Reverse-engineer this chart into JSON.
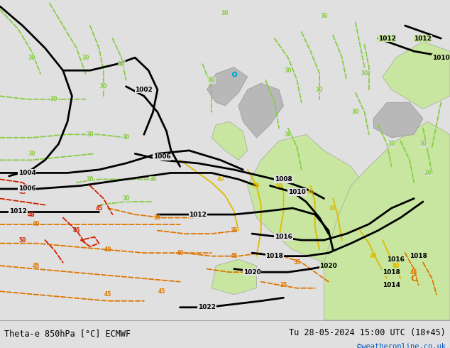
{
  "title_left": "Theta-e 850hPa [°C] ECMWF",
  "title_right": "Tu 28-05-2024 15:00 UTC (18+45)",
  "copyright": "©weatheronline.co.uk",
  "bg_color": "#e0e0e0",
  "green_area_color": "#c8e6a0",
  "figsize": [
    6.34,
    4.9
  ],
  "dpi": 100,
  "bottom_bar_color": "#d0d0d0",
  "bottom_text_color": "#000000",
  "copyright_color": "#0055bb",
  "green_line": "#88cc44",
  "yellow_line": "#ddbb00",
  "orange_line": "#dd7700",
  "red_line": "#cc2200",
  "black_line": "#000000",
  "cyan_color": "#00aacc"
}
